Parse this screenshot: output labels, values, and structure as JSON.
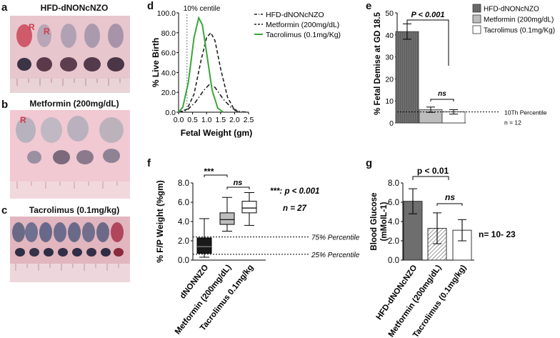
{
  "panels": {
    "a": {
      "letter": "a",
      "title": "HFD-dNONcNZO",
      "marks": [
        "R",
        "R"
      ]
    },
    "b": {
      "letter": "b",
      "title": "Metformin (200mg/dL)",
      "marks": [
        "R"
      ]
    },
    "c": {
      "letter": "c",
      "title": "Tacrolimus (0.1mg/kg)"
    },
    "d": {
      "letter": "d"
    },
    "e": {
      "letter": "e"
    },
    "f": {
      "letter": "f"
    },
    "g": {
      "letter": "g"
    }
  },
  "colors": {
    "hfd": "#6e6e6e",
    "metformin": "#bdbdbd",
    "tacrolimus": "#ffffff",
    "green": "#3aa63a",
    "photo_a": "#e8c6cd",
    "photo_b": "#f1c9d2",
    "photo_c": "#e2b6bf"
  },
  "chart_data": [
    {
      "panel": "d",
      "type": "line",
      "ylabel": "% Live Birth",
      "xlabel": "Fetal Weight (gm)",
      "annotation": "10% centile",
      "annotation_x": 0.3,
      "xlim": [
        0,
        2.5
      ],
      "ylim": [
        0,
        100
      ],
      "xticks": [
        "0.0",
        "0.5",
        "1.0",
        "1.5",
        "2.0",
        "2.5"
      ],
      "yticks": [
        "0.0",
        "20.0",
        "40.0",
        "60.0",
        "80.0",
        "100.0"
      ],
      "series": [
        {
          "name": "HFD-dNONcNZO",
          "style": "dash-dot",
          "points": [
            [
              0,
              0
            ],
            [
              0.3,
              2
            ],
            [
              0.6,
              10
            ],
            [
              0.9,
              22
            ],
            [
              1.1,
              28
            ],
            [
              1.3,
              25
            ],
            [
              1.6,
              13
            ],
            [
              1.9,
              4
            ],
            [
              2.2,
              0.5
            ],
            [
              2.5,
              0
            ]
          ]
        },
        {
          "name": "Metformin (200mg/dL)",
          "style": "dashed",
          "points": [
            [
              0,
              0
            ],
            [
              0.3,
              3
            ],
            [
              0.55,
              18
            ],
            [
              0.8,
              52
            ],
            [
              1.0,
              75
            ],
            [
              1.15,
              80
            ],
            [
              1.3,
              72
            ],
            [
              1.5,
              44
            ],
            [
              1.75,
              15
            ],
            [
              2.0,
              2
            ],
            [
              2.2,
              0
            ]
          ]
        },
        {
          "name": "Tacrolimus (0.1mg/Kg)",
          "style": "solid",
          "points": [
            [
              0,
              0
            ],
            [
              0.15,
              5
            ],
            [
              0.35,
              30
            ],
            [
              0.55,
              75
            ],
            [
              0.72,
              95
            ],
            [
              0.85,
              88
            ],
            [
              1.0,
              60
            ],
            [
              1.2,
              22
            ],
            [
              1.4,
              4
            ],
            [
              1.6,
              0
            ]
          ]
        }
      ]
    },
    {
      "panel": "e",
      "type": "bar",
      "ylabel": "% Fetal Demise at GD 18.5",
      "ylim": [
        0,
        50
      ],
      "yticks": [
        "0",
        "10",
        "20",
        "30",
        "40",
        "50"
      ],
      "categories": [
        "HFD-dNONcNZO",
        "Metformin (200mg/dL)",
        "Tacrolimus (0.1mg/Kg)"
      ],
      "values": [
        41.5,
        6,
        5
      ],
      "errors": [
        3.5,
        1.2,
        1.0
      ],
      "legend": [
        "HFD-dNONcNZO",
        "Metformin (200mg/dL)",
        "Tacrolimus (0.1mg/Kg)"
      ],
      "sig_main": "P < 0.001",
      "sig_ns": "ns",
      "ref_value": 5,
      "ref_label": "10Th Percentile",
      "n_label": "n = 12"
    },
    {
      "panel": "f",
      "type": "box",
      "ylabel": "% F/P Weight (%gm)",
      "ylim": [
        0,
        8
      ],
      "yticks": [
        "0.0",
        "2.0",
        "4.0",
        "6.0",
        "8.0"
      ],
      "categories": [
        "dNONNZO",
        "Metformin (200mg/dL)",
        "Tacrolimus 0.1mg/kg"
      ],
      "boxes": [
        {
          "min": 0.3,
          "q1": 0.7,
          "median": 1.4,
          "q3": 2.3,
          "max": 4.3
        },
        {
          "min": 3.0,
          "q1": 3.7,
          "median": 4.2,
          "q3": 4.9,
          "max": 6.5
        },
        {
          "min": 3.6,
          "q1": 4.9,
          "median": 5.4,
          "q3": 6.1,
          "max": 7.0
        }
      ],
      "ref_lines": [
        {
          "value": 2.4,
          "label": "75% Percentile"
        },
        {
          "value": 0.6,
          "label": "25% Percentile"
        }
      ],
      "sig_main": "***",
      "sig_ns": "ns",
      "note1": "***: p < 0.001",
      "note2": "n = 27"
    },
    {
      "panel": "g",
      "type": "bar",
      "ylabel": "Blood Glucose (mMoIL-1)",
      "ylim": [
        0,
        8
      ],
      "yticks": [
        "0.0",
        "2.0",
        "4.0",
        "6.0",
        "8.0"
      ],
      "categories": [
        "HFD-dNONcNZO",
        "Metformin (200mg/dL)",
        "Tacrolimus (0.1mg/kg)"
      ],
      "values": [
        6.1,
        3.3,
        3.1
      ],
      "errors": [
        1.3,
        1.6,
        1.1
      ],
      "sig_main": "p < 0.01",
      "sig_ns": "ns",
      "n_label": "n= 10- 23"
    }
  ]
}
